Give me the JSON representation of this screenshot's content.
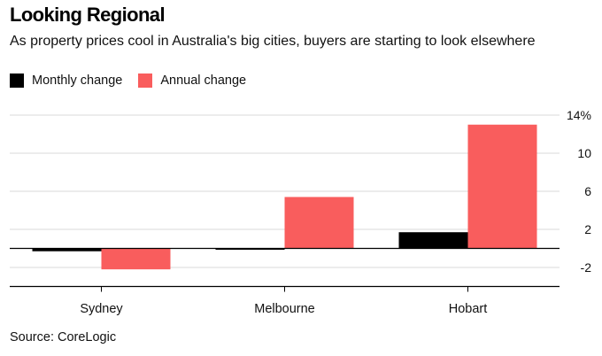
{
  "title": "Looking Regional",
  "subtitle": "As property prices cool in Australia's big cities, buyers are starting to look elsewhere",
  "source": "Source: CoreLogic",
  "colors": {
    "monthly": "#000000",
    "annual": "#f95d5d",
    "grid": "#d9d9d9",
    "axis": "#000000"
  },
  "chart_data": {
    "type": "bar",
    "categories": [
      "Sydney",
      "Melbourne",
      "Hobart"
    ],
    "series": [
      {
        "name": "Monthly change",
        "values": [
          -0.3,
          -0.1,
          1.7
        ]
      },
      {
        "name": "Annual change",
        "values": [
          -2.2,
          5.4,
          13.0
        ]
      }
    ],
    "ylim": [
      -4,
      14
    ],
    "yticks": [
      -2,
      2,
      6,
      10,
      14
    ],
    "ytick_labels": [
      "-2",
      "2",
      "6",
      "10",
      "14%"
    ],
    "grid": true,
    "legend": "top-left",
    "xlabel": "",
    "ylabel": ""
  }
}
